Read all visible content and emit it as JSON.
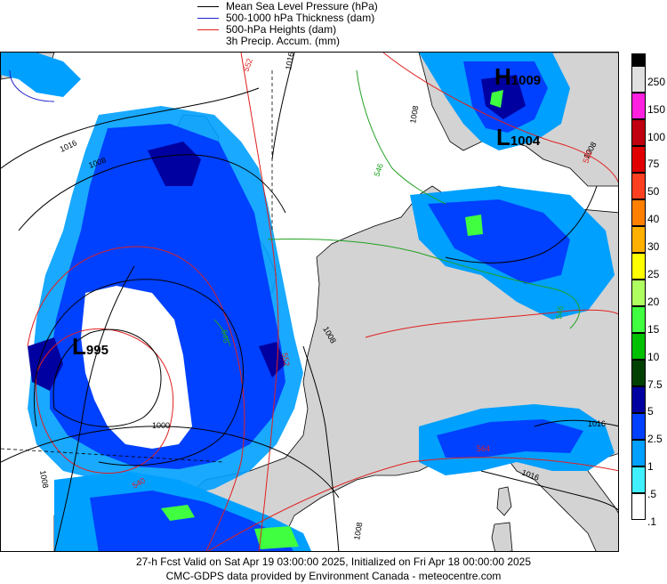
{
  "legend": {
    "mslp": "Mean Sea Level Pressure (hPa)",
    "thickness": "500-1000 hPa Thickness (dam)",
    "heights": "500-hPa Heights (dam)",
    "precip": "3h Precip. Accum. (mm)"
  },
  "colors": {
    "mslp": "#000000",
    "thickness": "#2020d0",
    "heights": "#e02020",
    "thickness_546": "#20a020",
    "land": "#d3d3d3",
    "sea": "#ffffff"
  },
  "scale": {
    "labels": [
      "250",
      "150",
      "100",
      "75",
      "50",
      "40",
      "30",
      "25",
      "20",
      "15",
      "10",
      "7.5",
      "5",
      "2.5",
      "1",
      ".5",
      ".1"
    ],
    "colors": [
      "#000000",
      "#e0e0e0",
      "#ff20e0",
      "#c00010",
      "#e00000",
      "#ff4020",
      "#ff8000",
      "#ffb000",
      "#ffff00",
      "#b0ff60",
      "#40ff40",
      "#00c000",
      "#004000",
      "#0000a0",
      "#0040ff",
      "#00a0ff",
      "#40f0ff"
    ]
  },
  "pressure_centers": [
    {
      "type": "L",
      "value": "995"
    },
    {
      "type": "H",
      "value": "1009"
    },
    {
      "type": "L",
      "value": "1004"
    }
  ],
  "contour_labels": {
    "isobars": [
      "1016",
      "1008",
      "1016",
      "1008",
      "1008",
      "1000",
      "1008",
      "1016",
      "1016",
      "1008",
      "1008"
    ],
    "heights": [
      "552",
      "552",
      "564",
      "540",
      "552"
    ],
    "thickness": [
      "546",
      "546",
      "546"
    ]
  },
  "footer": {
    "line1": "27-h Fcst Valid on Sat Apr 19 03:00:00 2025, Initialized on Fri Apr 18 00:00:00 2025",
    "line2": "CMC-GDPS data provided by Environment Canada - meteocentre.com"
  }
}
